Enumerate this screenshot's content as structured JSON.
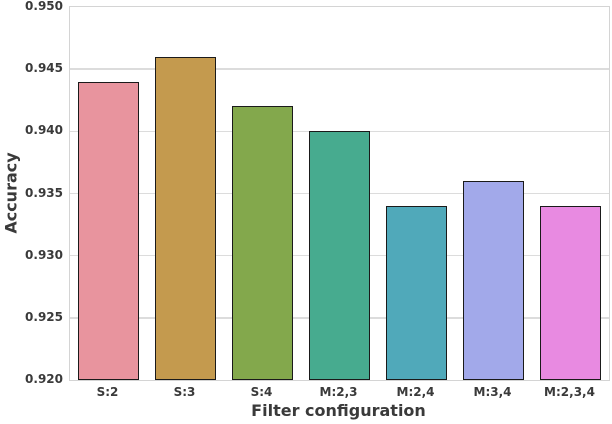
{
  "chart_data": {
    "type": "bar",
    "title": "",
    "xlabel": "Filter configuration",
    "ylabel": "Accuracy",
    "categories": [
      "S:2",
      "S:3",
      "S:4",
      "M:2,3",
      "M:2,4",
      "M:3,4",
      "M:2,3,4"
    ],
    "values": [
      0.944,
      0.946,
      0.942,
      0.94,
      0.934,
      0.936,
      0.934
    ],
    "bar_colors": [
      "#e8949e",
      "#c49a4e",
      "#83a84c",
      "#47ab8f",
      "#50a9ba",
      "#a2a9ea",
      "#e88ae1"
    ],
    "bar_edge_color": "#1a1a1a",
    "ylim": [
      0.92,
      0.95
    ],
    "ytick_step": 0.005,
    "ytick_labels": [
      "0.920",
      "0.925",
      "0.930",
      "0.935",
      "0.940",
      "0.945",
      "0.950"
    ],
    "grid": "horizontal",
    "grid_color": "#dcdcdc",
    "spine_color": "#d4d4d4",
    "text_color": "#3a3a3a",
    "background": "#ffffff",
    "legend": "none",
    "bar_width_fraction": 0.8
  }
}
